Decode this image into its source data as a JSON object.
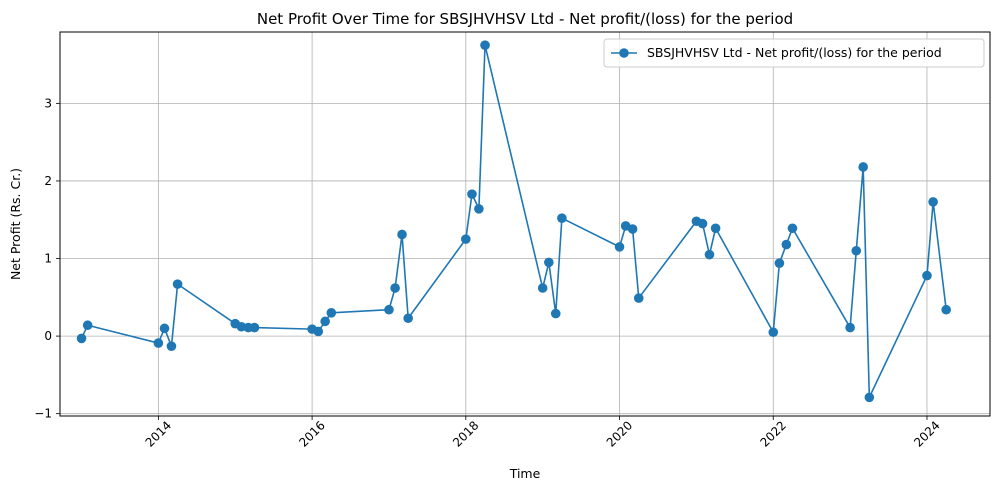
{
  "chart_data": {
    "type": "line",
    "title": "Net Profit Over Time for SBSJHVHSV Ltd - Net profit/(loss) for the period",
    "xlabel": "Time",
    "ylabel": "Net Profit (Rs. Cr.)",
    "xlim": [
      2012.72,
      2024.82
    ],
    "ylim": [
      -1.03,
      3.92
    ],
    "x_ticks": [
      2014,
      2016,
      2018,
      2020,
      2022,
      2024
    ],
    "x_tick_labels": [
      "2014",
      "2016",
      "2018",
      "2020",
      "2022",
      "2024"
    ],
    "y_ticks": [
      -1,
      0,
      1,
      2,
      3
    ],
    "y_tick_labels": [
      "−1",
      "0",
      "1",
      "2",
      "3"
    ],
    "grid": true,
    "legend": "top-right",
    "series": [
      {
        "name": "SBSJHVHSV Ltd - Net profit/(loss) for the period",
        "color": "#1f77b4",
        "marker": "circle",
        "points": [
          {
            "x": 2013.0,
            "y": -0.03
          },
          {
            "x": 2013.08,
            "y": 0.14
          },
          {
            "x": 2014.0,
            "y": -0.09
          },
          {
            "x": 2014.08,
            "y": 0.1
          },
          {
            "x": 2014.17,
            "y": -0.13
          },
          {
            "x": 2014.25,
            "y": 0.67
          },
          {
            "x": 2015.0,
            "y": 0.16
          },
          {
            "x": 2015.08,
            "y": 0.12
          },
          {
            "x": 2015.17,
            "y": 0.11
          },
          {
            "x": 2015.25,
            "y": 0.11
          },
          {
            "x": 2016.0,
            "y": 0.09
          },
          {
            "x": 2016.08,
            "y": 0.06
          },
          {
            "x": 2016.17,
            "y": 0.19
          },
          {
            "x": 2016.25,
            "y": 0.3
          },
          {
            "x": 2017.0,
            "y": 0.34
          },
          {
            "x": 2017.08,
            "y": 0.62
          },
          {
            "x": 2017.17,
            "y": 1.31
          },
          {
            "x": 2017.25,
            "y": 0.23
          },
          {
            "x": 2018.0,
            "y": 1.25
          },
          {
            "x": 2018.08,
            "y": 1.83
          },
          {
            "x": 2018.17,
            "y": 1.64
          },
          {
            "x": 2018.25,
            "y": 3.75
          },
          {
            "x": 2019.0,
            "y": 0.62
          },
          {
            "x": 2019.08,
            "y": 0.95
          },
          {
            "x": 2019.17,
            "y": 0.29
          },
          {
            "x": 2019.25,
            "y": 1.52
          },
          {
            "x": 2020.0,
            "y": 1.15
          },
          {
            "x": 2020.08,
            "y": 1.42
          },
          {
            "x": 2020.17,
            "y": 1.38
          },
          {
            "x": 2020.25,
            "y": 0.49
          },
          {
            "x": 2021.0,
            "y": 1.48
          },
          {
            "x": 2021.08,
            "y": 1.45
          },
          {
            "x": 2021.17,
            "y": 1.05
          },
          {
            "x": 2021.25,
            "y": 1.39
          },
          {
            "x": 2022.0,
            "y": 0.05
          },
          {
            "x": 2022.08,
            "y": 0.94
          },
          {
            "x": 2022.17,
            "y": 1.18
          },
          {
            "x": 2022.25,
            "y": 1.39
          },
          {
            "x": 2023.0,
            "y": 0.11
          },
          {
            "x": 2023.08,
            "y": 1.1
          },
          {
            "x": 2023.17,
            "y": 2.18
          },
          {
            "x": 2023.25,
            "y": -0.79
          },
          {
            "x": 2024.0,
            "y": 0.78
          },
          {
            "x": 2024.08,
            "y": 1.73
          },
          {
            "x": 2024.25,
            "y": 0.34
          }
        ]
      }
    ]
  }
}
